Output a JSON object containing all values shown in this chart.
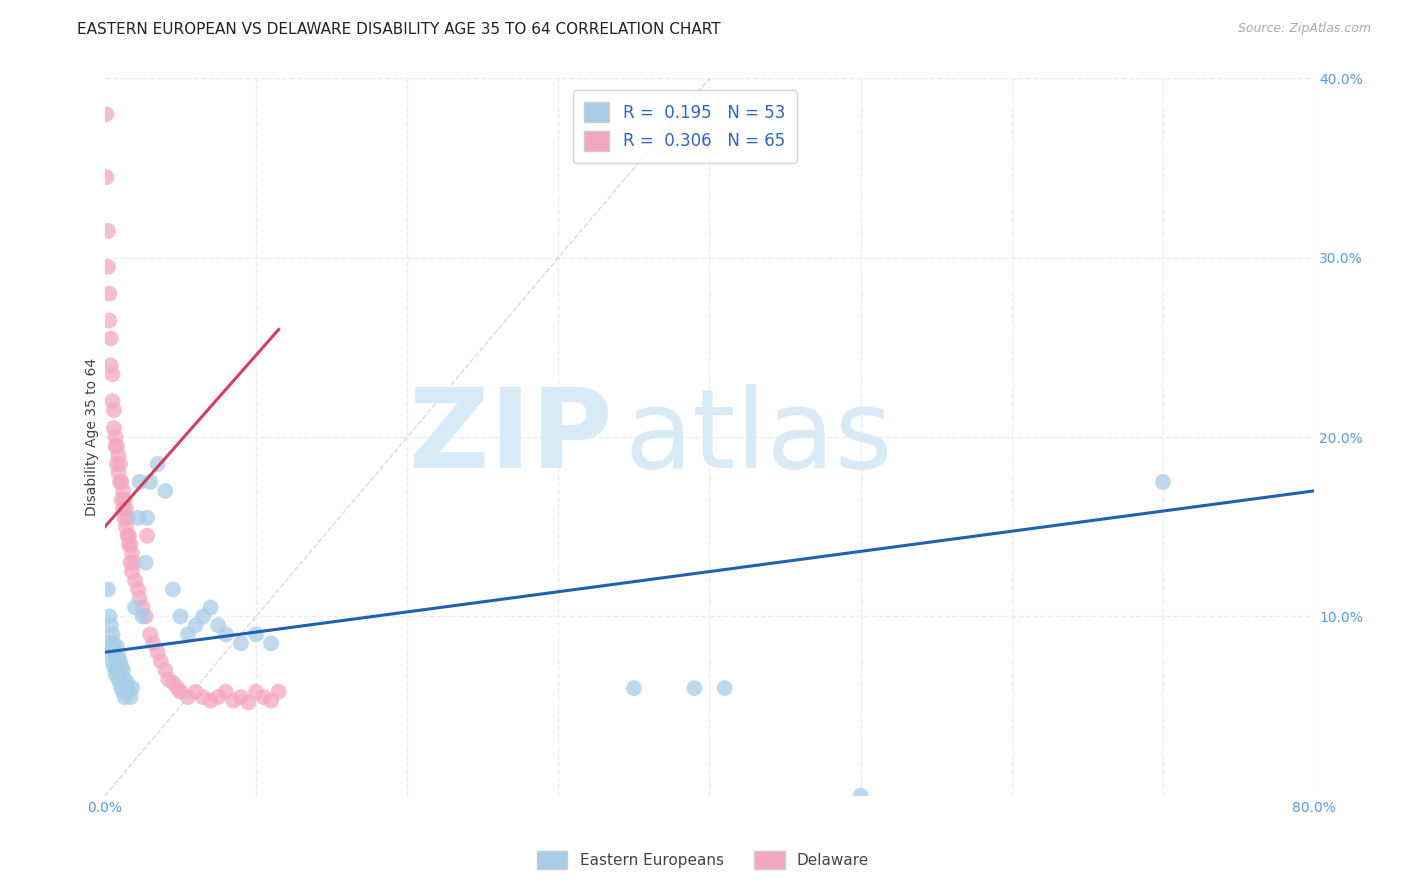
{
  "title": "EASTERN EUROPEAN VS DELAWARE DISABILITY AGE 35 TO 64 CORRELATION CHART",
  "source": "Source: ZipAtlas.com",
  "ylabel": "Disability Age 35 to 64",
  "xlim": [
    0,
    0.8
  ],
  "ylim": [
    0,
    0.4
  ],
  "blue_R": 0.195,
  "blue_N": 53,
  "pink_R": 0.306,
  "pink_N": 65,
  "blue_color": "#A8CDE8",
  "pink_color": "#F4A8C0",
  "blue_line_color": "#2060B0",
  "pink_line_color": "#D04060",
  "blue_scatter": [
    [
      0.002,
      0.115
    ],
    [
      0.003,
      0.1
    ],
    [
      0.003,
      0.085
    ],
    [
      0.004,
      0.095
    ],
    [
      0.004,
      0.08
    ],
    [
      0.005,
      0.09
    ],
    [
      0.005,
      0.075
    ],
    [
      0.006,
      0.085
    ],
    [
      0.006,
      0.072
    ],
    [
      0.007,
      0.08
    ],
    [
      0.007,
      0.068
    ],
    [
      0.008,
      0.083
    ],
    [
      0.008,
      0.07
    ],
    [
      0.009,
      0.078
    ],
    [
      0.009,
      0.065
    ],
    [
      0.01,
      0.075
    ],
    [
      0.01,
      0.063
    ],
    [
      0.011,
      0.072
    ],
    [
      0.011,
      0.06
    ],
    [
      0.012,
      0.07
    ],
    [
      0.012,
      0.058
    ],
    [
      0.013,
      0.065
    ],
    [
      0.013,
      0.055
    ],
    [
      0.014,
      0.06
    ],
    [
      0.015,
      0.063
    ],
    [
      0.016,
      0.058
    ],
    [
      0.017,
      0.055
    ],
    [
      0.018,
      0.06
    ],
    [
      0.02,
      0.105
    ],
    [
      0.022,
      0.155
    ],
    [
      0.023,
      0.175
    ],
    [
      0.025,
      0.1
    ],
    [
      0.027,
      0.13
    ],
    [
      0.028,
      0.155
    ],
    [
      0.03,
      0.175
    ],
    [
      0.035,
      0.185
    ],
    [
      0.04,
      0.17
    ],
    [
      0.045,
      0.115
    ],
    [
      0.05,
      0.1
    ],
    [
      0.055,
      0.09
    ],
    [
      0.06,
      0.095
    ],
    [
      0.065,
      0.1
    ],
    [
      0.07,
      0.105
    ],
    [
      0.075,
      0.095
    ],
    [
      0.08,
      0.09
    ],
    [
      0.09,
      0.085
    ],
    [
      0.1,
      0.09
    ],
    [
      0.11,
      0.085
    ],
    [
      0.35,
      0.06
    ],
    [
      0.39,
      0.06
    ],
    [
      0.41,
      0.06
    ],
    [
      0.5,
      0.0
    ],
    [
      0.7,
      0.175
    ]
  ],
  "pink_scatter": [
    [
      0.001,
      0.38
    ],
    [
      0.001,
      0.345
    ],
    [
      0.002,
      0.315
    ],
    [
      0.002,
      0.295
    ],
    [
      0.003,
      0.28
    ],
    [
      0.003,
      0.265
    ],
    [
      0.004,
      0.255
    ],
    [
      0.004,
      0.24
    ],
    [
      0.005,
      0.235
    ],
    [
      0.005,
      0.22
    ],
    [
      0.006,
      0.215
    ],
    [
      0.006,
      0.205
    ],
    [
      0.007,
      0.2
    ],
    [
      0.007,
      0.195
    ],
    [
      0.008,
      0.195
    ],
    [
      0.008,
      0.185
    ],
    [
      0.009,
      0.19
    ],
    [
      0.009,
      0.18
    ],
    [
      0.01,
      0.185
    ],
    [
      0.01,
      0.175
    ],
    [
      0.011,
      0.175
    ],
    [
      0.011,
      0.165
    ],
    [
      0.012,
      0.17
    ],
    [
      0.012,
      0.16
    ],
    [
      0.013,
      0.165
    ],
    [
      0.013,
      0.155
    ],
    [
      0.014,
      0.16
    ],
    [
      0.014,
      0.15
    ],
    [
      0.015,
      0.155
    ],
    [
      0.015,
      0.145
    ],
    [
      0.016,
      0.145
    ],
    [
      0.016,
      0.14
    ],
    [
      0.017,
      0.14
    ],
    [
      0.017,
      0.13
    ],
    [
      0.018,
      0.135
    ],
    [
      0.018,
      0.125
    ],
    [
      0.019,
      0.13
    ],
    [
      0.02,
      0.12
    ],
    [
      0.022,
      0.115
    ],
    [
      0.023,
      0.11
    ],
    [
      0.025,
      0.105
    ],
    [
      0.027,
      0.1
    ],
    [
      0.028,
      0.145
    ],
    [
      0.03,
      0.09
    ],
    [
      0.032,
      0.085
    ],
    [
      0.035,
      0.08
    ],
    [
      0.037,
      0.075
    ],
    [
      0.04,
      0.07
    ],
    [
      0.042,
      0.065
    ],
    [
      0.045,
      0.063
    ],
    [
      0.048,
      0.06
    ],
    [
      0.05,
      0.058
    ],
    [
      0.055,
      0.055
    ],
    [
      0.06,
      0.058
    ],
    [
      0.065,
      0.055
    ],
    [
      0.07,
      0.053
    ],
    [
      0.075,
      0.055
    ],
    [
      0.08,
      0.058
    ],
    [
      0.085,
      0.053
    ],
    [
      0.09,
      0.055
    ],
    [
      0.095,
      0.052
    ],
    [
      0.1,
      0.058
    ],
    [
      0.105,
      0.055
    ],
    [
      0.11,
      0.053
    ],
    [
      0.115,
      0.058
    ]
  ],
  "blue_trend_x": [
    0.0,
    0.8
  ],
  "blue_trend_y": [
    0.08,
    0.17
  ],
  "pink_trend_x": [
    0.0,
    0.115
  ],
  "pink_trend_y": [
    0.15,
    0.26
  ],
  "ref_line_x": [
    0.0,
    0.4
  ],
  "ref_line_y": [
    0.0,
    0.4
  ],
  "watermark_zip": "ZIP",
  "watermark_atlas": "atlas",
  "watermark_color": "#D8EAF5",
  "background_color": "#FFFFFF",
  "grid_color": "#E5EEF5",
  "tick_label_color": "#5B9BD5",
  "title_fontsize": 11,
  "label_fontsize": 10,
  "tick_fontsize": 10
}
